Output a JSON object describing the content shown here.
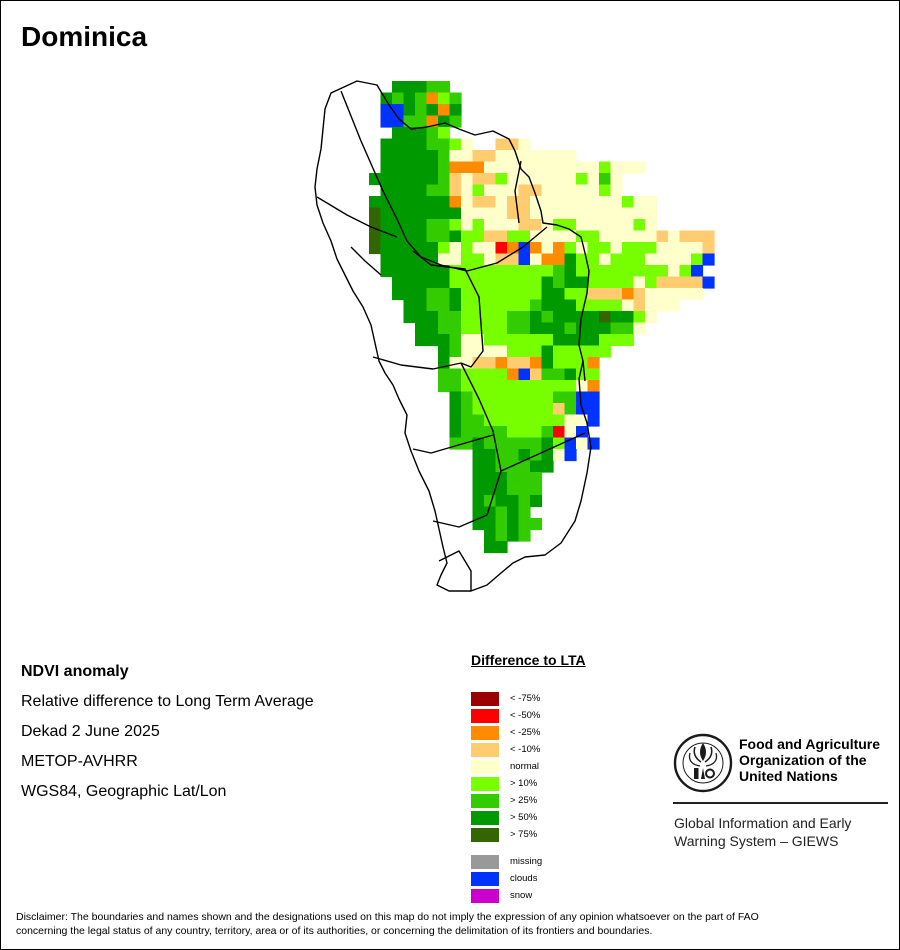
{
  "map": {
    "title": "Dominica",
    "info": {
      "product": "NDVI anomaly",
      "description": "Relative difference to Long Term Average",
      "period": "Dekad 2 June 2025",
      "sensor": "METOP-AVHRR",
      "projection": "WGS84, Geographic Lat/Lon"
    }
  },
  "legend": {
    "title": "Difference to LTA",
    "classes": [
      {
        "key": "a",
        "label": "< -75%",
        "color": "#9b0000"
      },
      {
        "key": "b",
        "label": "< -50%",
        "color": "#ff0000"
      },
      {
        "key": "c",
        "label": "< -25%",
        "color": "#ff8c00"
      },
      {
        "key": "d",
        "label": "< -10%",
        "color": "#ffcc70"
      },
      {
        "key": "n",
        "label": "normal",
        "color": "#ffffcc"
      },
      {
        "key": "e",
        "label": "> 10%",
        "color": "#77ff00"
      },
      {
        "key": "f",
        "label": "> 25%",
        "color": "#33cc00"
      },
      {
        "key": "g",
        "label": "> 50%",
        "color": "#009900"
      },
      {
        "key": "h",
        "label": "> 75%",
        "color": "#336600"
      },
      {
        "key": "m",
        "label": "missing",
        "color": "#999999"
      },
      {
        "key": "c2",
        "label": "clouds",
        "color": "#0033ff"
      },
      {
        "key": "s",
        "label": "snow",
        "color": "#cc00cc"
      }
    ]
  },
  "grid_rows": [
    "      gggff                       ",
    "     gfgfcef                      ",
    "     c2c2gfgcg                     ",
    "     c2c2ffcgf                     ",
    "      gggfe                       ",
    "     ggggffen  ddn                ",
    "     gggggfnnddnnnnnnn             ",
    "     gggggfcccnnnnnnnnnnennn       ",
    "    ggggggfdnddennnnnnenfn        ",
    "     ggggffdnennnddnnnnnen        ",
    "    gggggggcnddnddnnnnnnnnenn     ",
    "    hgggggggnnnnddnnnnnnnnnnn     ",
    "    hggggffenennnddneennnnnen     ",
    "    hggggffgeeddeennnneennnnndnddd ",
    "    hgggggenennbcc2cnceneeneeennnnd ",
    "     gggggnneenddc2nccgeeneeennnnec2 ",
    "     ggggggeeeeeeeeefgeeeeeeeenec2 ",
    "      gggggeeeeeeeegfggeeeeneddddc2 ",
    "      gggffgeeeeeeeggeedddcdnnnnn ",
    "       ggffgeeeeeefgggeeeendnnn  ",
    "       gggffeeeeffgfgggghggen    ",
    "        ggffeeeeffgggfgggffn     ",
    "        gggfnneeeeeeggggeee      ",
    "          gfnnnneeegeeeee       ",
    "          gnnddcddcgeeec        ",
    "          ffeeeecc2dffgee        ",
    "          ffeeeeeeeeeenc        ",
    "           gfeeeeeeeffc2c2        ",
    "           gfeeeeeeedfc2c2        ",
    "           gffeeeeeeennc2        ",
    "           gffffeeefbnc2        ",
    "           ffgfffffgec2nc2        ",
    "             ggffgfgnc2         ",
    "             ggfffgg           ",
    "             gggfff            ",
    "             gggfff            ",
    "             gfggfg            ",
    "             ggfgf             ",
    "             ggfgff            ",
    "              gfgf             ",
    "              gg               "
  ]
}
